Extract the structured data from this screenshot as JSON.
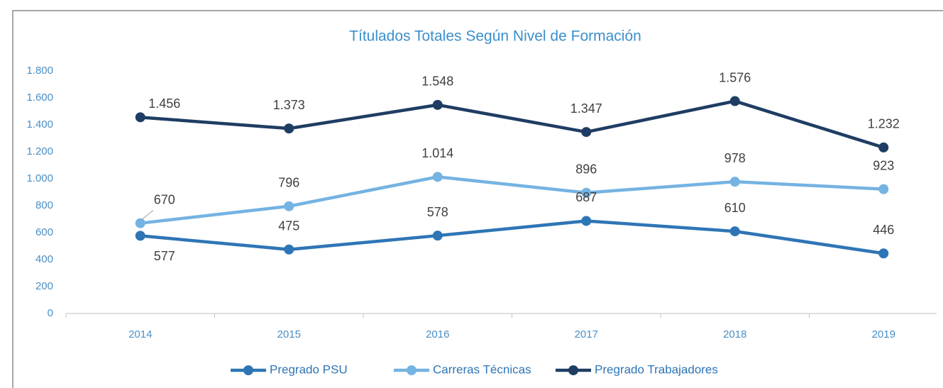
{
  "chart_data": {
    "type": "line",
    "title": "Títulados Totales Según Nivel de Formación",
    "categories": [
      "2014",
      "2015",
      "2016",
      "2017",
      "2018",
      "2019"
    ],
    "series": [
      {
        "name": "Pregrado PSU",
        "color": "#2e75b6",
        "values": [
          577,
          475,
          578,
          687,
          610,
          446
        ],
        "value_labels": [
          "577",
          "475",
          "578",
          "687",
          "610",
          "446"
        ]
      },
      {
        "name": "Carreras Técnicas",
        "color": "#74b3e2",
        "values": [
          670,
          796,
          1014,
          896,
          978,
          923
        ],
        "value_labels": [
          "670",
          "796",
          "1.014",
          "896",
          "978",
          "923"
        ]
      },
      {
        "name": "Pregrado Trabajadores",
        "color": "#1f3d63",
        "values": [
          1456,
          1373,
          1548,
          1347,
          1576,
          1232
        ],
        "value_labels": [
          "1.456",
          "1.373",
          "1.548",
          "1.347",
          "1.576",
          "1.232"
        ]
      }
    ],
    "ylim": [
      0,
      1800
    ],
    "yticks": [
      0,
      200,
      400,
      600,
      800,
      {
        "value": 1000,
        "label": "1.000"
      },
      {
        "value": 1200,
        "label": "1.200"
      },
      {
        "value": 1400,
        "label": "1.400"
      },
      {
        "value": 1600,
        "label": "1.600"
      },
      {
        "value": 1800,
        "label": "1.800"
      }
    ],
    "legend": "bottom"
  }
}
